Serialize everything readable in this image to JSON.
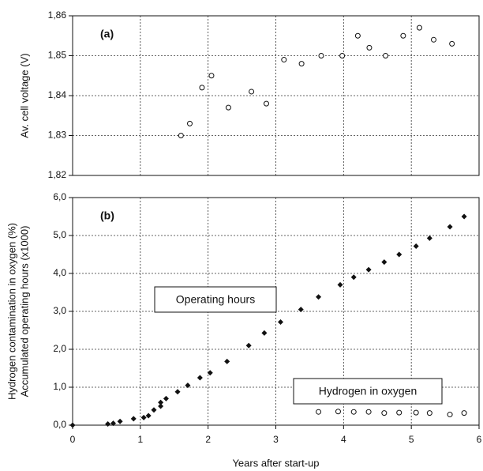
{
  "chart_data": [
    {
      "type": "scatter",
      "panel_label": "(a)",
      "ylabel": "Av. cell voltage (V)",
      "xlim": [
        0,
        6
      ],
      "xticks": [
        0,
        1,
        2,
        3,
        4,
        5,
        6
      ],
      "ylim": [
        1.82,
        1.86
      ],
      "yticks": [
        {
          "value": 1.82,
          "label": "1,82"
        },
        {
          "value": 1.83,
          "label": "1,83"
        },
        {
          "value": 1.84,
          "label": "1,84"
        },
        {
          "value": 1.85,
          "label": "1,85"
        },
        {
          "value": 1.86,
          "label": "1,86"
        }
      ],
      "grid": true,
      "series": [
        {
          "marker": "circle-open",
          "color": "#111111",
          "x": [
            1.6,
            1.73,
            1.91,
            2.05,
            2.3,
            2.64,
            2.86,
            3.12,
            3.38,
            3.67,
            3.98,
            4.21,
            4.38,
            4.62,
            4.88,
            5.12,
            5.33,
            5.6
          ],
          "values": [
            1.83,
            1.833,
            1.842,
            1.845,
            1.837,
            1.841,
            1.838,
            1.849,
            1.848,
            1.85,
            1.85,
            1.855,
            1.852,
            1.85,
            1.855,
            1.857,
            1.854,
            1.853
          ]
        }
      ]
    },
    {
      "type": "scatter",
      "panel_label": "(b)",
      "ylabel": [
        "Hydrogen contamination in oxygen (%)",
        "Accumulated operating hours (x1000)"
      ],
      "xlabel": "Years after start-up",
      "xlim": [
        0,
        6
      ],
      "xticks": [
        0,
        1,
        2,
        3,
        4,
        5,
        6
      ],
      "ylim": [
        0,
        6
      ],
      "yticks": [
        {
          "value": 0,
          "label": "0,0"
        },
        {
          "value": 1,
          "label": "1,0"
        },
        {
          "value": 2,
          "label": "2,0"
        },
        {
          "value": 3,
          "label": "3,0"
        },
        {
          "value": 4,
          "label": "4,0"
        },
        {
          "value": 5,
          "label": "5,0"
        },
        {
          "value": 6,
          "label": "6,0"
        }
      ],
      "grid": true,
      "annotations": [
        "Operating hours",
        "Hydrogen in oxygen"
      ],
      "series": [
        {
          "marker": "diamond",
          "color": "#111111",
          "x": [
            0,
            0.52,
            0.6,
            0.7,
            0.9,
            1.05,
            1.12,
            1.2,
            1.3,
            1.3,
            1.38,
            1.55,
            1.7,
            1.88,
            2.03,
            2.28,
            2.6,
            2.83,
            3.07,
            3.37,
            3.63,
            3.95,
            4.15,
            4.37,
            4.6,
            4.82,
            5.07,
            5.27,
            5.57,
            5.78
          ],
          "values": [
            0,
            0.03,
            0.05,
            0.1,
            0.17,
            0.2,
            0.25,
            0.4,
            0.5,
            0.6,
            0.7,
            0.88,
            1.05,
            1.25,
            1.38,
            1.68,
            2.1,
            2.43,
            2.72,
            3.05,
            3.38,
            3.7,
            3.9,
            4.1,
            4.3,
            4.5,
            4.72,
            4.93,
            5.23,
            5.5
          ]
        },
        {
          "marker": "circle-open",
          "color": "#111111",
          "x": [
            3.63,
            3.92,
            4.15,
            4.37,
            4.6,
            4.82,
            5.07,
            5.27,
            5.57,
            5.78
          ],
          "values": [
            0.35,
            0.36,
            0.35,
            0.35,
            0.32,
            0.33,
            0.33,
            0.32,
            0.28,
            0.32
          ]
        }
      ]
    }
  ]
}
